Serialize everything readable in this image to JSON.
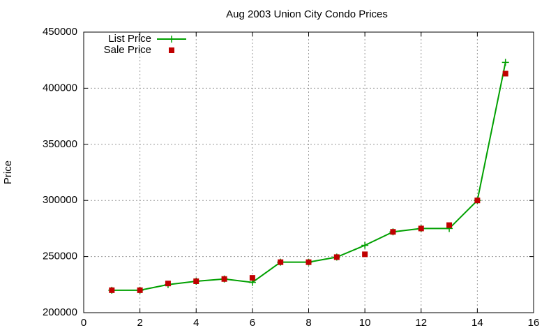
{
  "chart_data": {
    "type": "line",
    "title": "Aug 2003 Union City Condo Prices",
    "y_label": "Price",
    "x": [
      1,
      2,
      3,
      4,
      5,
      6,
      7,
      8,
      9,
      10,
      11,
      12,
      13,
      14,
      15
    ],
    "series": [
      {
        "name": "List Price",
        "color": "#00a000",
        "style": "linespoints",
        "values": [
          220000,
          220000,
          225000,
          228000,
          230000,
          227000,
          245000,
          245000,
          249500,
          260000,
          272000,
          275000,
          275000,
          300000,
          423000
        ]
      },
      {
        "name": "Sale Price",
        "color": "#c00000",
        "style": "points",
        "values": [
          220000,
          220000,
          226000,
          228000,
          230000,
          231000,
          245000,
          245000,
          249500,
          252000,
          272000,
          275000,
          278000,
          300000,
          413000
        ]
      }
    ],
    "xlim": [
      0,
      16
    ],
    "xticks": [
      0,
      2,
      4,
      6,
      8,
      10,
      12,
      14,
      16
    ],
    "ylim": [
      200000,
      450000
    ],
    "yticks": [
      200000,
      250000,
      300000,
      350000,
      400000,
      450000
    ],
    "grid": true,
    "legend": "top-left"
  }
}
